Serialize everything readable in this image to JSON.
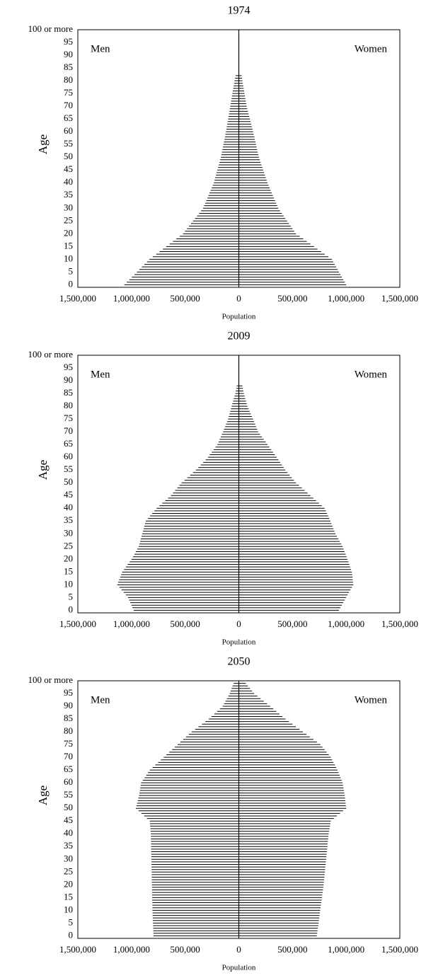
{
  "chart_data": [
    {
      "type": "pyramid",
      "title": "1974",
      "xlabel": "Population",
      "ylabel": "Age",
      "color": "#000000",
      "xlim": [
        0,
        1500000
      ],
      "xticks": [
        0,
        {
          "value": 500000,
          "label": "500,000"
        },
        {
          "value": 1000000,
          "label": "1,000,000"
        },
        {
          "value": 1500000,
          "label": "1,500,000"
        }
      ],
      "ylim": [
        -1,
        100
      ],
      "yticks": [
        0,
        5,
        10,
        15,
        20,
        25,
        30,
        35,
        40,
        45,
        50,
        55,
        60,
        65,
        70,
        75,
        80,
        85,
        90,
        95,
        {
          "value": 100,
          "label": "100 or more"
        }
      ],
      "y": [
        0,
        1,
        2,
        3,
        4,
        5,
        6,
        7,
        8,
        9,
        10,
        11,
        12,
        13,
        14,
        15,
        16,
        17,
        18,
        19,
        20,
        21,
        22,
        23,
        24,
        25,
        26,
        27,
        28,
        29,
        30,
        31,
        32,
        33,
        34,
        35,
        36,
        37,
        38,
        39,
        40,
        41,
        42,
        43,
        44,
        45,
        46,
        47,
        48,
        49,
        50,
        51,
        52,
        53,
        54,
        55,
        56,
        57,
        58,
        59,
        60,
        61,
        62,
        63,
        64,
        65,
        66,
        67,
        68,
        69,
        70,
        71,
        72,
        73,
        74,
        75,
        76,
        77,
        78,
        79,
        80,
        81,
        82,
        83,
        84,
        85,
        86,
        87,
        88,
        89,
        90,
        91,
        92,
        93,
        94,
        95,
        96,
        97,
        98,
        99,
        100
      ],
      "series": [
        {
          "name": "Men",
          "values": [
            1067000,
            1044000,
            1020000,
            997000,
            973000,
            950000,
            927000,
            903000,
            880000,
            856000,
            833000,
            802000,
            770000,
            739000,
            708000,
            677000,
            645000,
            614000,
            583000,
            551000,
            520000,
            501000,
            483000,
            464000,
            445000,
            427000,
            408000,
            389000,
            370000,
            352000,
            333000,
            323000,
            313000,
            303000,
            293000,
            283000,
            273000,
            263000,
            253000,
            243000,
            233000,
            226000,
            220000,
            213000,
            207000,
            200000,
            193000,
            187000,
            180000,
            174000,
            167000,
            162000,
            158000,
            153000,
            148000,
            144000,
            139000,
            134000,
            129000,
            125000,
            120000,
            116000,
            112000,
            108000,
            104000,
            100000,
            96000,
            92000,
            88000,
            84000,
            80000,
            76000,
            72000,
            68000,
            64000,
            60000,
            56000,
            52000,
            48000,
            44000,
            40000,
            35000,
            30000,
            null,
            null,
            null,
            null,
            null,
            null,
            null,
            null,
            null,
            null,
            null,
            null,
            null,
            null,
            null,
            null,
            null,
            null
          ]
        },
        {
          "name": "Women",
          "values": [
            1000000,
            987000,
            973000,
            960000,
            947000,
            933000,
            920000,
            907000,
            893000,
            880000,
            867000,
            834000,
            800000,
            767000,
            733000,
            700000,
            667000,
            633000,
            600000,
            567000,
            533000,
            516000,
            500000,
            483000,
            467000,
            450000,
            433000,
            417000,
            400000,
            383000,
            367000,
            357000,
            347000,
            337000,
            327000,
            317000,
            307000,
            297000,
            287000,
            277000,
            267000,
            259000,
            251000,
            243000,
            235000,
            227000,
            219000,
            211000,
            203000,
            195000,
            187000,
            182000,
            176000,
            171000,
            165000,
            160000,
            155000,
            149000,
            144000,
            138000,
            133000,
            127000,
            121000,
            115000,
            109000,
            103000,
            97000,
            91000,
            85000,
            79000,
            73000,
            69000,
            65000,
            61000,
            57000,
            53000,
            49000,
            45000,
            41000,
            37000,
            33000,
            29000,
            25000,
            null,
            null,
            null,
            null,
            null,
            null,
            null,
            null,
            null,
            null,
            null,
            null,
            null,
            null,
            null,
            null,
            null,
            null
          ]
        }
      ]
    },
    {
      "type": "pyramid",
      "title": "2009",
      "xlabel": "Population",
      "ylabel": "Age",
      "color": "#000000",
      "xlim": [
        0,
        1500000
      ],
      "xticks": [
        0,
        {
          "value": 500000,
          "label": "500,000"
        },
        {
          "value": 1000000,
          "label": "1,000,000"
        },
        {
          "value": 1500000,
          "label": "1,500,000"
        }
      ],
      "ylim": [
        -1,
        100
      ],
      "yticks": [
        0,
        5,
        10,
        15,
        20,
        25,
        30,
        35,
        40,
        45,
        50,
        55,
        60,
        65,
        70,
        75,
        80,
        85,
        90,
        95,
        {
          "value": 100,
          "label": "100 or more"
        }
      ],
      "y": [
        0,
        1,
        2,
        3,
        4,
        5,
        6,
        7,
        8,
        9,
        10,
        11,
        12,
        13,
        14,
        15,
        16,
        17,
        18,
        19,
        20,
        21,
        22,
        23,
        24,
        25,
        26,
        27,
        28,
        29,
        30,
        31,
        32,
        33,
        34,
        35,
        36,
        37,
        38,
        39,
        40,
        41,
        42,
        43,
        44,
        45,
        46,
        47,
        48,
        49,
        50,
        51,
        52,
        53,
        54,
        55,
        56,
        57,
        58,
        59,
        60,
        61,
        62,
        63,
        64,
        65,
        66,
        67,
        68,
        69,
        70,
        71,
        72,
        73,
        74,
        75,
        76,
        77,
        78,
        79,
        80,
        81,
        82,
        83,
        84,
        85,
        86,
        87,
        88,
        89,
        90,
        91,
        92,
        93,
        94,
        95,
        96,
        97,
        98,
        99,
        100
      ],
      "series": [
        {
          "name": "Men",
          "values": [
            980000,
            991000,
            1001000,
            1012000,
            1022000,
            1033000,
            1053000,
            1073000,
            1093000,
            1113000,
            1133000,
            1124000,
            1115000,
            1105000,
            1096000,
            1087000,
            1070000,
            1052000,
            1035000,
            1017000,
            1000000,
            987000,
            973000,
            960000,
            946000,
            933000,
            926000,
            920000,
            913000,
            907000,
            900000,
            893000,
            887000,
            880000,
            874000,
            867000,
            847000,
            827000,
            807000,
            787000,
            767000,
            740000,
            713000,
            686000,
            660000,
            633000,
            613000,
            593000,
            573000,
            553000,
            533000,
            506000,
            480000,
            453000,
            427000,
            400000,
            377000,
            355000,
            332000,
            310000,
            287000,
            270000,
            252000,
            235000,
            217000,
            200000,
            189000,
            179000,
            168000,
            158000,
            147000,
            138000,
            128000,
            119000,
            109000,
            100000,
            93000,
            87000,
            80000,
            74000,
            67000,
            60000,
            53000,
            47000,
            40000,
            33000,
            29000,
            24000,
            20000,
            null,
            null,
            null,
            null,
            null,
            null,
            null,
            null,
            null,
            null,
            null,
            null
          ]
        },
        {
          "name": "Women",
          "values": [
            933000,
            946000,
            960000,
            973000,
            987000,
            1000000,
            1013000,
            1027000,
            1040000,
            1054000,
            1067000,
            1064000,
            1061000,
            1059000,
            1056000,
            1053000,
            1045000,
            1037000,
            1029000,
            1021000,
            1013000,
            1004000,
            995000,
            985000,
            976000,
            967000,
            954000,
            940000,
            927000,
            913000,
            900000,
            891000,
            881000,
            872000,
            862000,
            853000,
            842000,
            832000,
            821000,
            811000,
            800000,
            773000,
            747000,
            720000,
            694000,
            667000,
            640000,
            613000,
            587000,
            560000,
            533000,
            513000,
            493000,
            473000,
            453000,
            433000,
            417000,
            401000,
            385000,
            369000,
            353000,
            336000,
            319000,
            301000,
            284000,
            267000,
            250000,
            232000,
            215000,
            197000,
            180000,
            171000,
            161000,
            152000,
            142000,
            133000,
            122000,
            112000,
            101000,
            91000,
            80000,
            73000,
            67000,
            60000,
            54000,
            47000,
            42000,
            38000,
            33000,
            null,
            null,
            null,
            null,
            null,
            null,
            null,
            null,
            null,
            null,
            null,
            null
          ]
        }
      ]
    },
    {
      "type": "pyramid",
      "title": "2050",
      "xlabel": "Population",
      "ylabel": "Age",
      "color": "#000000",
      "xlim": [
        0,
        1500000
      ],
      "xticks": [
        0,
        {
          "value": 500000,
          "label": "500,000"
        },
        {
          "value": 1000000,
          "label": "1,000,000"
        },
        {
          "value": 1500000,
          "label": "1,500,000"
        }
      ],
      "ylim": [
        -1,
        100
      ],
      "yticks": [
        0,
        5,
        10,
        15,
        20,
        25,
        30,
        35,
        40,
        45,
        50,
        55,
        60,
        65,
        70,
        75,
        80,
        85,
        90,
        95,
        {
          "value": 100,
          "label": "100 or more"
        }
      ],
      "y": [
        0,
        1,
        2,
        3,
        4,
        5,
        6,
        7,
        8,
        9,
        10,
        11,
        12,
        13,
        14,
        15,
        16,
        17,
        18,
        19,
        20,
        21,
        22,
        23,
        24,
        25,
        26,
        27,
        28,
        29,
        30,
        31,
        32,
        33,
        34,
        35,
        36,
        37,
        38,
        39,
        40,
        41,
        42,
        43,
        44,
        45,
        46,
        47,
        48,
        49,
        50,
        51,
        52,
        53,
        54,
        55,
        56,
        57,
        58,
        59,
        60,
        61,
        62,
        63,
        64,
        65,
        66,
        67,
        68,
        69,
        70,
        71,
        72,
        73,
        74,
        75,
        76,
        77,
        78,
        79,
        80,
        81,
        82,
        83,
        84,
        85,
        86,
        87,
        88,
        89,
        90,
        91,
        92,
        93,
        94,
        95,
        96,
        97,
        98,
        99,
        100
      ],
      "series": [
        {
          "name": "Men",
          "values": [
            795000,
            796000,
            797000,
            798000,
            799000,
            800000,
            801000,
            802000,
            803000,
            804000,
            805000,
            805000,
            806000,
            806000,
            807000,
            807000,
            808000,
            808000,
            809000,
            809000,
            810000,
            810000,
            811000,
            811000,
            812000,
            812000,
            813000,
            813000,
            814000,
            814000,
            815000,
            815000,
            816000,
            816000,
            817000,
            817000,
            818000,
            818000,
            819000,
            819000,
            820000,
            822000,
            824000,
            826000,
            828000,
            830000,
            856000,
            882000,
            908000,
            934000,
            960000,
            954000,
            948000,
            942000,
            936000,
            930000,
            926000,
            922000,
            918000,
            914000,
            910000,
            894000,
            878000,
            862000,
            846000,
            830000,
            804000,
            778000,
            752000,
            726000,
            700000,
            674000,
            648000,
            622000,
            596000,
            570000,
            544000,
            518000,
            492000,
            466000,
            440000,
            408000,
            376000,
            344000,
            312000,
            280000,
            254000,
            228000,
            202000,
            176000,
            150000,
            137000,
            124000,
            111000,
            98000,
            85000,
            76000,
            67000,
            58000,
            49000,
            40000
          ]
        },
        {
          "name": "Women",
          "values": [
            727000,
            730000,
            733000,
            736000,
            740000,
            743000,
            746000,
            749000,
            752000,
            755000,
            758000,
            762000,
            765000,
            768000,
            771000,
            774000,
            777000,
            781000,
            784000,
            787000,
            790000,
            792000,
            795000,
            797000,
            799000,
            802000,
            804000,
            806000,
            809000,
            811000,
            813000,
            816000,
            818000,
            820000,
            823000,
            825000,
            827000,
            830000,
            832000,
            834000,
            837000,
            841000,
            845000,
            849000,
            853000,
            857000,
            886000,
            914000,
            943000,
            971000,
            1000000,
            997000,
            995000,
            992000,
            990000,
            987000,
            983000,
            979000,
            975000,
            971000,
            967000,
            958000,
            948000,
            939000,
            929000,
            920000,
            907000,
            895000,
            882000,
            870000,
            857000,
            838000,
            818000,
            799000,
            779000,
            760000,
            727000,
            695000,
            662000,
            630000,
            597000,
            565000,
            532000,
            500000,
            467000,
            435000,
            406000,
            378000,
            349000,
            321000,
            292000,
            262000,
            232000,
            203000,
            173000,
            143000,
            123000,
            104000,
            84000,
            65000,
            45000
          ]
        }
      ]
    }
  ]
}
